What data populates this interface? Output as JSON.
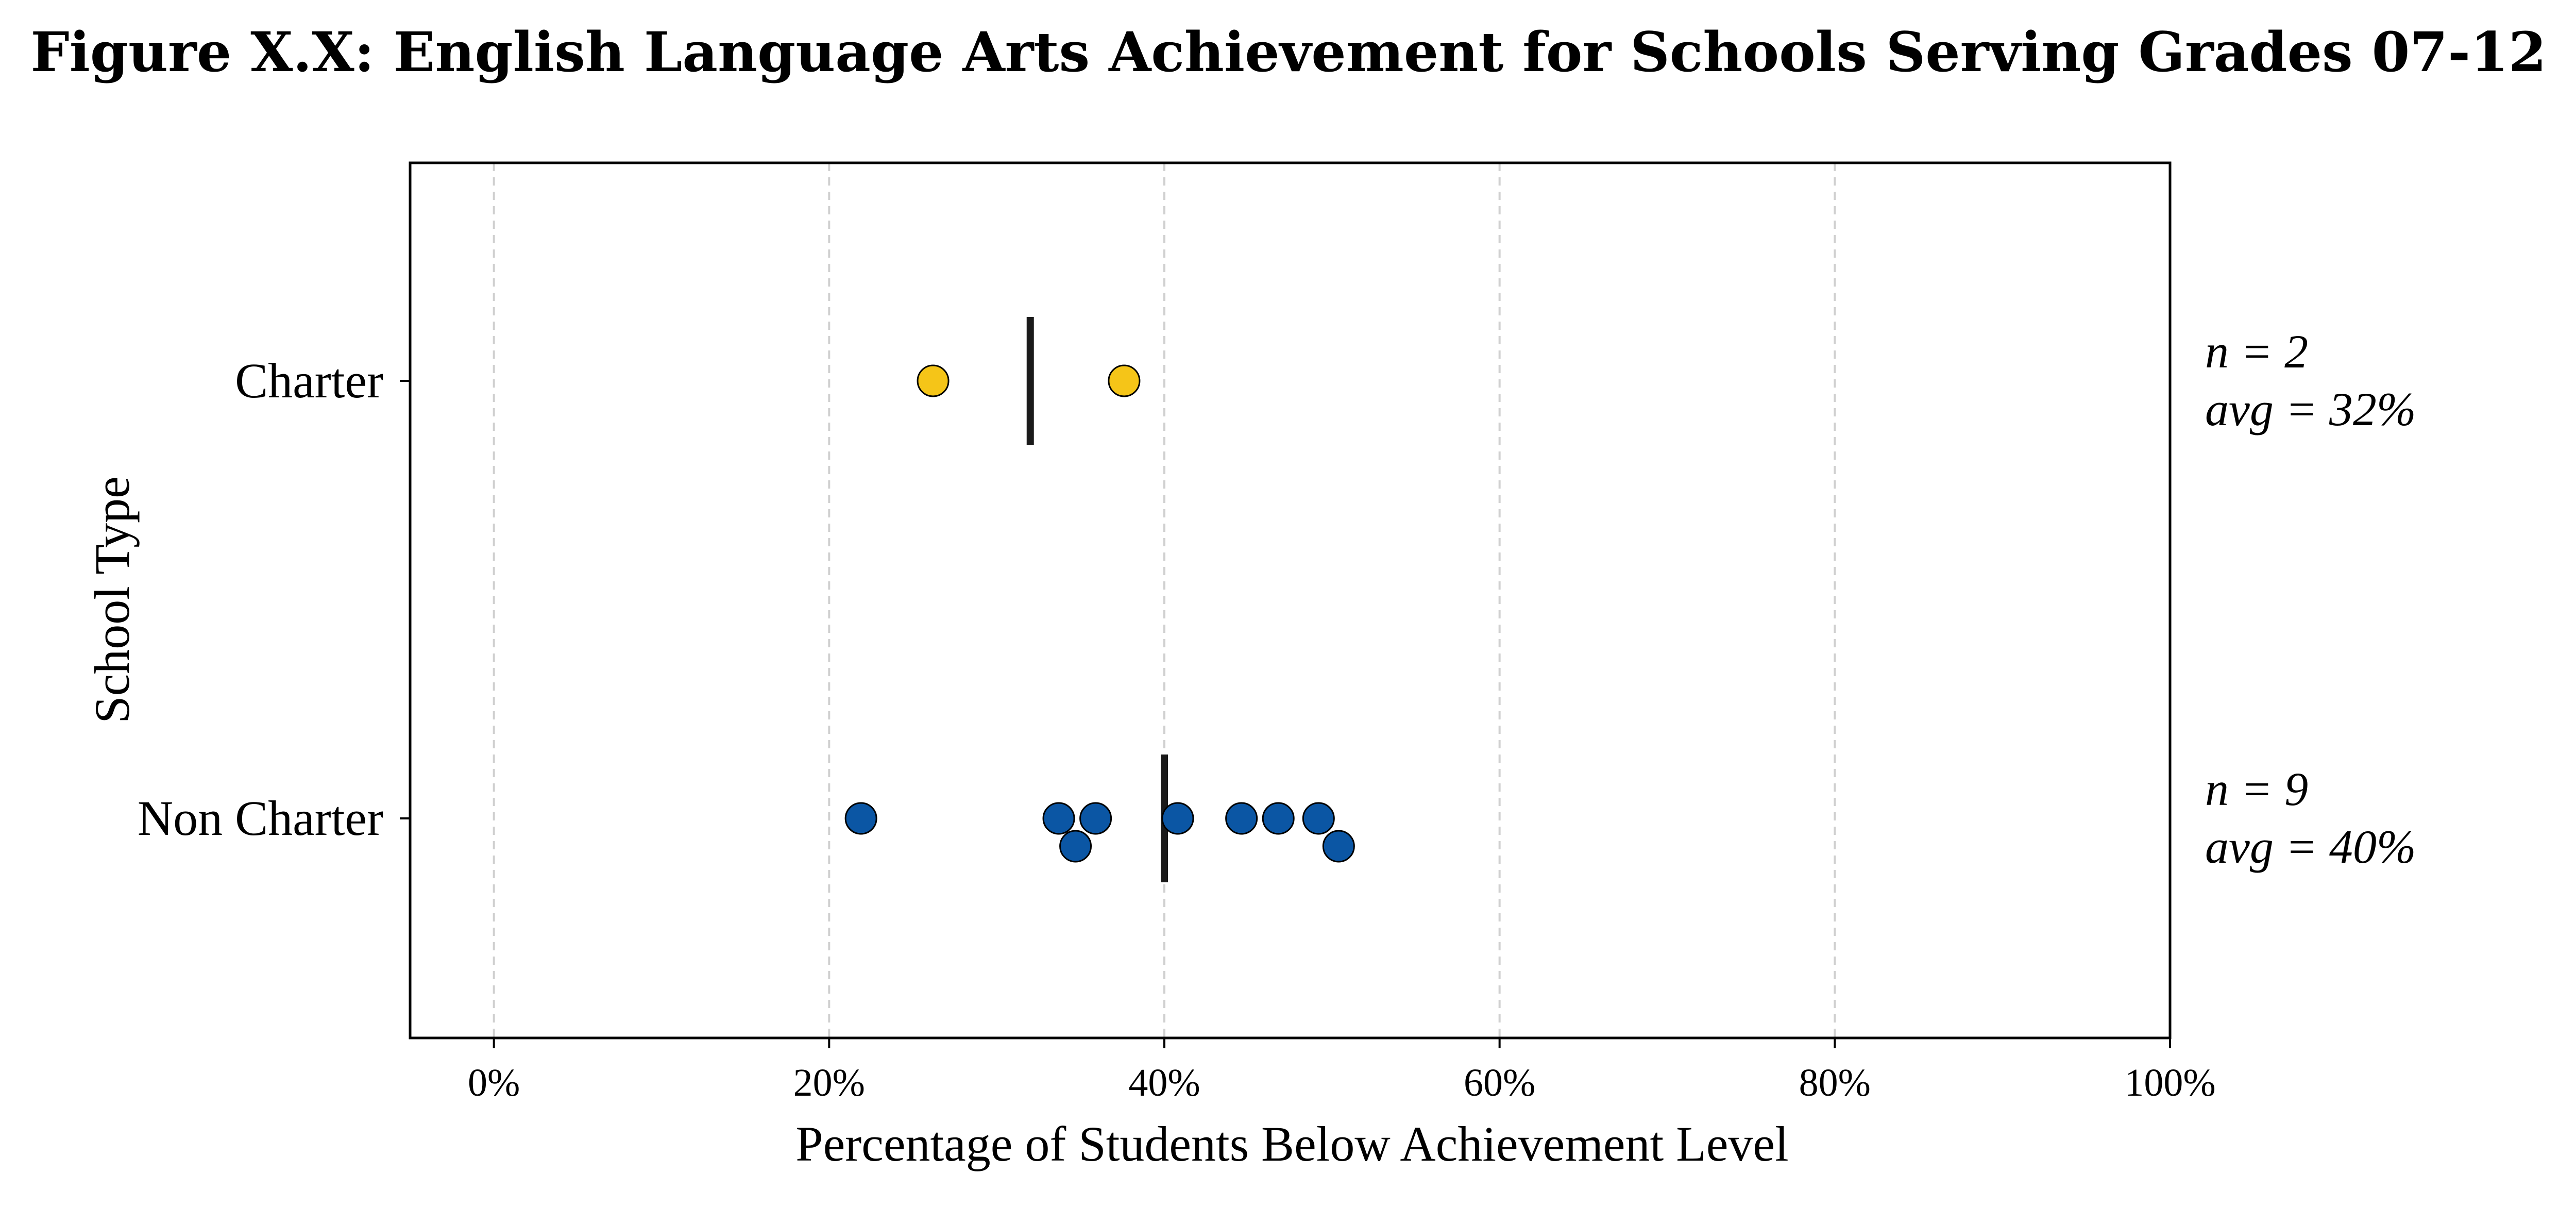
{
  "chart_data": {
    "type": "scatter",
    "title": "Figure X.X: English Language Arts Achievement for Schools Serving Grades 07-12",
    "xlabel": "Percentage of Students Below Achievement Level",
    "ylabel": "School Type",
    "xlim": [
      -5,
      100
    ],
    "xticks": [
      0,
      20,
      40,
      60,
      80,
      100
    ],
    "xtick_labels": [
      "0%",
      "20%",
      "40%",
      "60%",
      "80%",
      "100%"
    ],
    "grid": "vertical dashed",
    "categories": [
      "Charter",
      "Non Charter"
    ],
    "series": [
      {
        "category": "Charter",
        "color": "#F5C518",
        "points": [
          {
            "x": 26.2,
            "offset": 0
          },
          {
            "x": 37.6,
            "offset": 0
          }
        ],
        "average": 32,
        "annotation": [
          "n = 2",
          "avg = 32%"
        ]
      },
      {
        "category": "Non Charter",
        "color": "#0B56A4",
        "points": [
          {
            "x": 21.9,
            "offset": 0
          },
          {
            "x": 33.7,
            "offset": 0
          },
          {
            "x": 35.9,
            "offset": 0
          },
          {
            "x": 34.7,
            "offset": 1
          },
          {
            "x": 40.8,
            "offset": 0
          },
          {
            "x": 44.6,
            "offset": 0
          },
          {
            "x": 46.8,
            "offset": 0
          },
          {
            "x": 49.2,
            "offset": 0
          },
          {
            "x": 50.4,
            "offset": 1
          }
        ],
        "average": 40,
        "annotation": [
          "n = 9",
          "avg = 40%"
        ]
      }
    ]
  }
}
